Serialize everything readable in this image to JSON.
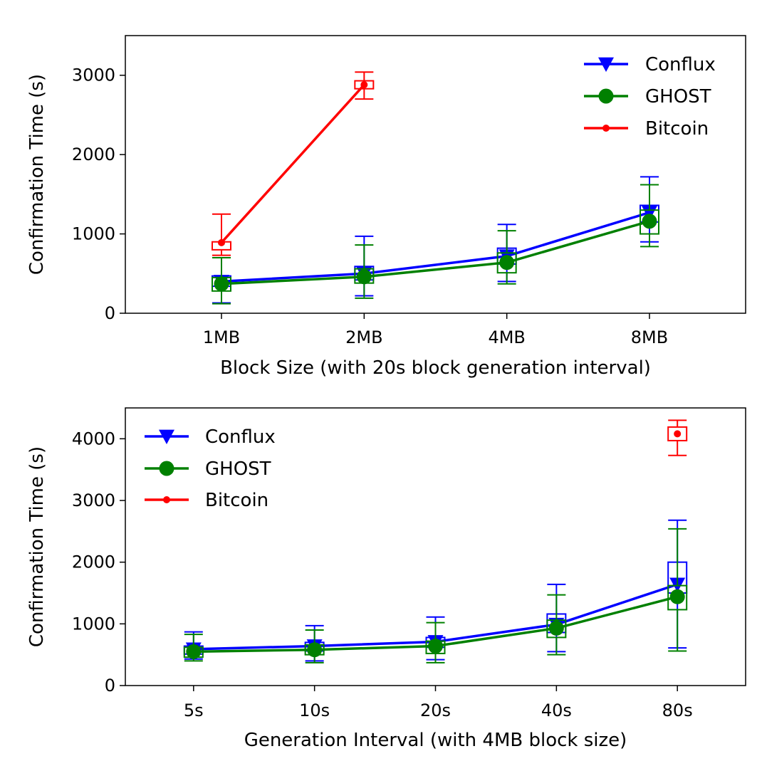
{
  "chart_data": [
    {
      "type": "line",
      "title": "",
      "xlabel": "Block Size (with 20s block generation interval)",
      "ylabel": "Confirmation Time (s)",
      "categories": [
        "1MB",
        "2MB",
        "4MB",
        "8MB"
      ],
      "ylim": [
        0,
        3500
      ],
      "yticks": [
        0,
        1000,
        2000,
        3000
      ],
      "legend_position": "top-right",
      "series": [
        {
          "name": "Conflux",
          "color": "#0000ff",
          "marker": "triangle-down",
          "values": [
            400,
            500,
            720,
            1270
          ],
          "box_q1": [
            340,
            420,
            620,
            1150
          ],
          "box_q3": [
            470,
            590,
            820,
            1360
          ],
          "whisker_low": [
            130,
            220,
            400,
            900
          ],
          "whisker_high": [
            700,
            970,
            1120,
            1720
          ]
        },
        {
          "name": "GHOST",
          "color": "#008000",
          "marker": "circle",
          "values": [
            370,
            460,
            640,
            1160
          ],
          "box_q1": [
            280,
            380,
            510,
            1000
          ],
          "box_q3": [
            450,
            560,
            760,
            1300
          ],
          "whisker_low": [
            120,
            190,
            370,
            840
          ],
          "whisker_high": [
            700,
            860,
            1040,
            1620
          ]
        },
        {
          "name": "Bitcoin",
          "color": "#ff0000",
          "marker": "small-circle",
          "values": [
            890,
            2880,
            null,
            null
          ],
          "box_q1": [
            800,
            2830,
            null,
            null
          ],
          "box_q3": [
            900,
            2930,
            null,
            null
          ],
          "whisker_low": [
            730,
            2700,
            null,
            null
          ],
          "whisker_high": [
            1250,
            3040,
            null,
            null
          ]
        }
      ]
    },
    {
      "type": "line",
      "title": "",
      "xlabel": "Generation Interval (with 4MB block size)",
      "ylabel": "Confirmation Time (s)",
      "categories": [
        "5s",
        "10s",
        "20s",
        "40s",
        "80s"
      ],
      "ylim": [
        0,
        4500
      ],
      "yticks": [
        0,
        1000,
        2000,
        3000,
        4000
      ],
      "legend_position": "top-left",
      "series": [
        {
          "name": "Conflux",
          "color": "#0000ff",
          "marker": "triangle-down",
          "values": [
            590,
            640,
            710,
            990,
            1640
          ],
          "box_q1": [
            510,
            560,
            620,
            860,
            1500
          ],
          "box_q3": [
            640,
            700,
            780,
            1160,
            2000
          ],
          "whisker_low": [
            430,
            400,
            420,
            550,
            610
          ],
          "whisker_high": [
            870,
            970,
            1110,
            1640,
            2680
          ]
        },
        {
          "name": "GHOST",
          "color": "#008000",
          "marker": "circle",
          "values": [
            550,
            580,
            640,
            930,
            1440
          ],
          "box_q1": [
            460,
            500,
            520,
            780,
            1230
          ],
          "box_q3": [
            620,
            660,
            720,
            1060,
            1620
          ],
          "whisker_low": [
            400,
            370,
            370,
            500,
            560
          ],
          "whisker_high": [
            830,
            900,
            1020,
            1470,
            2540
          ]
        },
        {
          "name": "Bitcoin",
          "color": "#ff0000",
          "marker": "small-circle",
          "values": [
            null,
            null,
            null,
            null,
            4080
          ],
          "box_q1": [
            null,
            null,
            null,
            null,
            3970
          ],
          "box_q3": [
            null,
            null,
            null,
            null,
            4190
          ],
          "whisker_low": [
            null,
            null,
            null,
            null,
            3730
          ],
          "whisker_high": [
            null,
            null,
            null,
            null,
            4300
          ]
        }
      ]
    }
  ]
}
